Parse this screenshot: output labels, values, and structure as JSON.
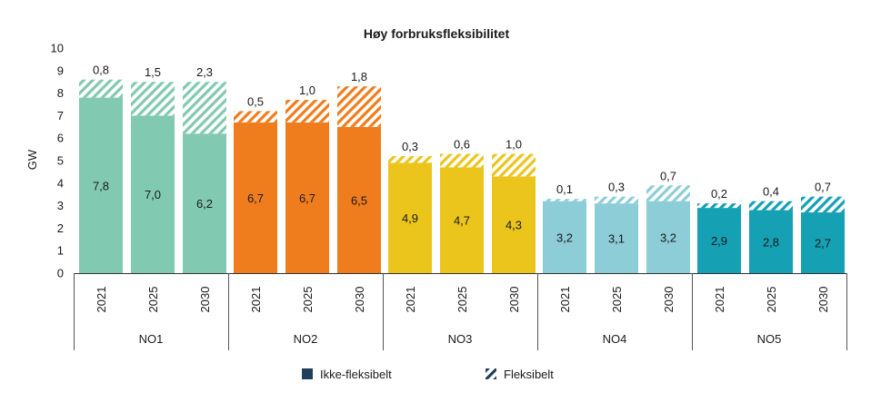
{
  "chart_data": {
    "type": "bar",
    "stacked": true,
    "title": "Høy forbruksfleksibilitet",
    "ylabel": "GW",
    "xlabel": "",
    "ylim": [
      0,
      10
    ],
    "yticks": [
      "0",
      "1",
      "2",
      "3",
      "4",
      "5",
      "6",
      "7",
      "8",
      "9",
      "10"
    ],
    "grid": false,
    "legend_position": "bottom",
    "groups": [
      {
        "name": "NO1",
        "color": "#82c9b2",
        "years": [
          "2021",
          "2025",
          "2030"
        ],
        "base": [
          7.8,
          7.0,
          6.2
        ],
        "flex": [
          0.8,
          1.5,
          2.3
        ],
        "base_labels": [
          "7,8",
          "7,0",
          "6,2"
        ],
        "flex_labels": [
          "0,8",
          "1,5",
          "2,3"
        ]
      },
      {
        "name": "NO2",
        "color": "#ef7d1e",
        "years": [
          "2021",
          "2025",
          "2030"
        ],
        "base": [
          6.7,
          6.7,
          6.5
        ],
        "flex": [
          0.5,
          1.0,
          1.8
        ],
        "base_labels": [
          "6,7",
          "6,7",
          "6,5"
        ],
        "flex_labels": [
          "0,5",
          "1,0",
          "1,8"
        ]
      },
      {
        "name": "NO3",
        "color": "#ebc51c",
        "years": [
          "2021",
          "2025",
          "2030"
        ],
        "base": [
          4.9,
          4.7,
          4.3
        ],
        "flex": [
          0.3,
          0.6,
          1.0
        ],
        "base_labels": [
          "4,9",
          "4,7",
          "4,3"
        ],
        "flex_labels": [
          "0,3",
          "0,6",
          "1,0"
        ]
      },
      {
        "name": "NO4",
        "color": "#8ccdd7",
        "years": [
          "2021",
          "2025",
          "2030"
        ],
        "base": [
          3.2,
          3.1,
          3.2
        ],
        "flex": [
          0.1,
          0.3,
          0.7
        ],
        "base_labels": [
          "3,2",
          "3,1",
          "3,2"
        ],
        "flex_labels": [
          "0,1",
          "0,3",
          "0,7"
        ]
      },
      {
        "name": "NO5",
        "color": "#16a0b4",
        "years": [
          "2021",
          "2025",
          "2030"
        ],
        "base": [
          2.9,
          2.8,
          2.7
        ],
        "flex": [
          0.2,
          0.4,
          0.7
        ],
        "base_labels": [
          "2,9",
          "2,8",
          "2,7"
        ],
        "flex_labels": [
          "0,2",
          "0,4",
          "0,7"
        ]
      }
    ],
    "legend": [
      {
        "name": "Ikke-fleksibelt",
        "style": "solid",
        "color": "#1f3f5b"
      },
      {
        "name": "Fleksibelt",
        "style": "hatched",
        "color": "#1f3f5b"
      }
    ]
  }
}
